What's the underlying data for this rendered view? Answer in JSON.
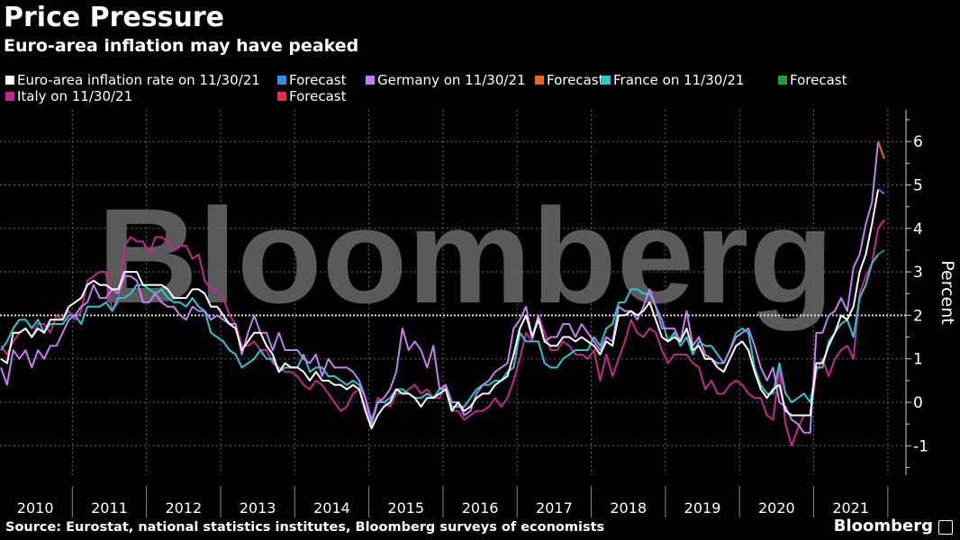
{
  "header": {
    "title": "Price Pressure",
    "subtitle": "Euro-area inflation may have peaked"
  },
  "footer": {
    "source": "Source: Eurostat, national statistics institutes, Bloomberg surveys of economists",
    "logo": "Bloomberg"
  },
  "chart_data": {
    "type": "line",
    "title": "Price Pressure",
    "subtitle": "Euro-area inflation may have peaked",
    "ylabel": "Percent",
    "xlabel": "",
    "ylim": [
      -1.6,
      6.6
    ],
    "yticks": [
      -1,
      0,
      1,
      2,
      3,
      4,
      5,
      6
    ],
    "ytick_labels": [
      "-1",
      "0",
      "1",
      "2",
      "3",
      "4",
      "5",
      "6"
    ],
    "x_start": "2010-01",
    "x_frequency": "monthly",
    "x_tick_labels": [
      "2010",
      "2011",
      "2012",
      "2013",
      "2014",
      "2015",
      "2016",
      "2017",
      "2018",
      "2019",
      "2020",
      "2021"
    ],
    "grid": true,
    "reference_line": 2,
    "watermark": "Bloomberg",
    "legend_position": "top-left",
    "series": [
      {
        "name": "Euro-area inflation rate on 11/30/21",
        "color": "#ffffff",
        "values": [
          1.0,
          0.9,
          1.6,
          1.6,
          1.7,
          1.5,
          1.7,
          1.6,
          1.9,
          1.9,
          1.9,
          2.2,
          2.3,
          2.4,
          2.7,
          2.8,
          2.7,
          2.7,
          2.6,
          2.6,
          3.0,
          3.0,
          3.0,
          2.7,
          2.7,
          2.7,
          2.7,
          2.6,
          2.4,
          2.4,
          2.4,
          2.6,
          2.6,
          2.5,
          2.2,
          2.2,
          2.0,
          1.8,
          1.7,
          1.2,
          1.4,
          1.6,
          1.6,
          1.3,
          1.1,
          0.7,
          0.9,
          0.8,
          0.8,
          0.7,
          0.5,
          0.7,
          0.5,
          0.5,
          0.4,
          0.4,
          0.3,
          0.4,
          0.3,
          -0.2,
          -0.6,
          -0.3,
          -0.1,
          0.0,
          0.3,
          0.2,
          0.2,
          0.1,
          -0.1,
          0.1,
          0.1,
          0.2,
          0.3,
          -0.2,
          0.0,
          -0.2,
          -0.1,
          0.1,
          0.2,
          0.2,
          0.4,
          0.5,
          0.6,
          1.1,
          1.7,
          2.0,
          1.5,
          1.9,
          1.4,
          1.3,
          1.3,
          1.5,
          1.5,
          1.4,
          1.5,
          1.4,
          1.3,
          1.1,
          1.4,
          1.3,
          2.0,
          2.0,
          2.1,
          2.0,
          2.1,
          2.3,
          1.9,
          1.5,
          1.4,
          1.5,
          1.4,
          1.7,
          1.2,
          1.3,
          1.0,
          1.0,
          0.8,
          0.7,
          1.0,
          1.3,
          1.4,
          1.2,
          0.7,
          0.3,
          0.1,
          0.3,
          0.4,
          -0.2,
          -0.3,
          -0.3,
          -0.3,
          -0.3,
          0.9,
          0.9,
          1.3,
          1.6,
          2.0,
          1.9,
          2.2,
          3.0,
          3.4,
          4.1,
          4.9
        ]
      },
      {
        "name": "Forecast",
        "color": "#2f8ff0",
        "forecast_of": 0,
        "values": [
          4.8
        ]
      },
      {
        "name": "Germany on 11/30/21",
        "color": "#c77df0",
        "values": [
          0.8,
          0.4,
          1.2,
          1.0,
          1.2,
          0.8,
          1.2,
          1.0,
          1.3,
          1.3,
          1.6,
          1.9,
          2.0,
          2.2,
          2.3,
          2.7,
          2.4,
          2.4,
          2.6,
          2.5,
          2.9,
          2.9,
          2.8,
          2.3,
          2.3,
          2.5,
          2.3,
          2.2,
          2.2,
          2.0,
          1.9,
          2.2,
          2.1,
          2.1,
          1.9,
          2.0,
          1.9,
          1.8,
          1.8,
          1.1,
          1.6,
          2.0,
          1.6,
          1.6,
          1.2,
          1.6,
          1.2,
          1.2,
          1.2,
          1.0,
          0.9,
          1.1,
          0.6,
          1.0,
          0.8,
          0.8,
          0.8,
          0.7,
          0.5,
          0.1,
          -0.5,
          0.0,
          0.1,
          0.3,
          0.7,
          1.7,
          1.2,
          1.4,
          1.2,
          0.8,
          1.3,
          0.3,
          0.4,
          0.0,
          0.0,
          -0.3,
          -0.2,
          0.2,
          0.4,
          0.5,
          0.7,
          0.8,
          0.9,
          1.7,
          1.9,
          2.2,
          1.5,
          2.0,
          1.4,
          1.5,
          1.5,
          1.8,
          1.8,
          1.5,
          1.8,
          1.6,
          1.4,
          1.2,
          1.5,
          1.4,
          2.2,
          2.1,
          2.1,
          1.9,
          2.2,
          2.6,
          2.2,
          1.7,
          1.7,
          1.7,
          1.4,
          2.1,
          1.3,
          1.5,
          1.1,
          1.0,
          0.9,
          0.9,
          1.2,
          1.5,
          1.6,
          1.7,
          1.3,
          0.8,
          0.5,
          0.8,
          0.0,
          -0.1,
          -0.4,
          -0.5,
          -0.7,
          -0.7,
          1.6,
          1.6,
          2.0,
          2.1,
          2.4,
          2.1,
          3.1,
          3.4,
          4.1,
          4.6,
          6.0
        ]
      },
      {
        "name": "Forecast",
        "color": "#f0641e",
        "forecast_of": 2,
        "values": [
          5.6
        ]
      },
      {
        "name": "France on 11/30/21",
        "color": "#29c7d1",
        "values": [
          1.2,
          1.4,
          1.7,
          1.9,
          1.9,
          1.7,
          1.9,
          1.6,
          1.8,
          1.8,
          1.8,
          2.0,
          2.0,
          1.8,
          2.2,
          2.2,
          2.2,
          2.3,
          2.1,
          2.4,
          2.4,
          2.5,
          2.7,
          2.7,
          2.6,
          2.5,
          2.6,
          2.4,
          2.3,
          2.3,
          2.2,
          2.4,
          2.2,
          2.1,
          1.6,
          1.5,
          1.4,
          1.2,
          1.1,
          0.8,
          0.9,
          1.0,
          1.2,
          1.0,
          1.0,
          0.7,
          0.8,
          0.8,
          0.8,
          1.1,
          0.7,
          0.8,
          0.8,
          0.6,
          0.6,
          0.5,
          0.4,
          0.5,
          0.4,
          0.1,
          -0.4,
          0.0,
          0.0,
          0.1,
          0.3,
          0.3,
          0.2,
          0.1,
          0.1,
          0.2,
          0.1,
          0.3,
          0.3,
          -0.1,
          -0.1,
          -0.1,
          0.1,
          0.3,
          0.4,
          0.4,
          0.5,
          0.5,
          0.7,
          0.8,
          1.6,
          1.4,
          1.4,
          1.4,
          0.9,
          0.8,
          0.8,
          1.0,
          1.1,
          1.2,
          1.2,
          1.2,
          1.5,
          1.3,
          1.7,
          1.8,
          2.3,
          2.3,
          2.6,
          2.6,
          2.5,
          2.5,
          2.2,
          1.9,
          1.4,
          1.6,
          1.3,
          1.5,
          1.1,
          1.4,
          1.3,
          1.3,
          1.1,
          0.9,
          1.2,
          1.6,
          1.7,
          1.6,
          0.8,
          0.4,
          0.2,
          0.2,
          0.9,
          0.2,
          0.0,
          0.1,
          0.2,
          0.0,
          0.8,
          0.8,
          1.4,
          1.6,
          1.8,
          1.9,
          1.5,
          2.4,
          2.7,
          3.2,
          3.4
        ]
      },
      {
        "name": "Forecast",
        "color": "#1f9e3a",
        "forecast_of": 4,
        "values": [
          3.5
        ]
      },
      {
        "name": "Italy on 11/30/21",
        "color": "#c4278f",
        "values": [
          1.3,
          1.1,
          1.4,
          1.6,
          1.7,
          1.5,
          1.8,
          1.8,
          1.6,
          2.0,
          1.9,
          2.1,
          1.9,
          2.1,
          2.8,
          2.9,
          3.0,
          3.0,
          2.1,
          2.3,
          3.6,
          3.8,
          3.7,
          3.7,
          3.4,
          3.8,
          3.8,
          3.7,
          3.5,
          3.6,
          3.6,
          3.3,
          3.4,
          2.8,
          2.6,
          2.6,
          2.4,
          2.0,
          1.8,
          1.3,
          1.3,
          1.4,
          1.2,
          1.2,
          0.9,
          0.8,
          0.7,
          0.7,
          0.6,
          0.4,
          0.3,
          0.5,
          0.4,
          0.2,
          0.0,
          -0.2,
          -0.1,
          0.2,
          0.3,
          -0.1,
          -0.5,
          0.1,
          0.0,
          -0.1,
          0.2,
          0.2,
          0.3,
          0.4,
          0.2,
          0.3,
          0.1,
          0.1,
          0.4,
          -0.2,
          -0.2,
          -0.4,
          -0.3,
          -0.2,
          -0.2,
          -0.1,
          0.1,
          -0.1,
          0.1,
          0.5,
          1.0,
          1.6,
          1.4,
          2.0,
          1.6,
          1.2,
          1.2,
          1.4,
          1.3,
          1.1,
          1.1,
          1.0,
          1.2,
          0.5,
          1.1,
          0.6,
          1.0,
          1.4,
          1.9,
          1.6,
          1.5,
          1.7,
          1.6,
          1.2,
          0.9,
          1.1,
          1.1,
          1.1,
          0.9,
          0.8,
          0.3,
          0.5,
          0.2,
          0.2,
          0.4,
          0.5,
          0.4,
          0.2,
          0.1,
          0.1,
          -0.3,
          -0.4,
          0.8,
          -0.5,
          -1.0,
          -0.6,
          -0.3,
          -0.3,
          0.7,
          1.0,
          0.6,
          1.0,
          1.2,
          1.3,
          1.0,
          2.5,
          2.9,
          3.2,
          4.0
        ]
      },
      {
        "name": "Forecast",
        "color": "#f0284a",
        "forecast_of": 6,
        "values": [
          4.2
        ]
      }
    ]
  }
}
